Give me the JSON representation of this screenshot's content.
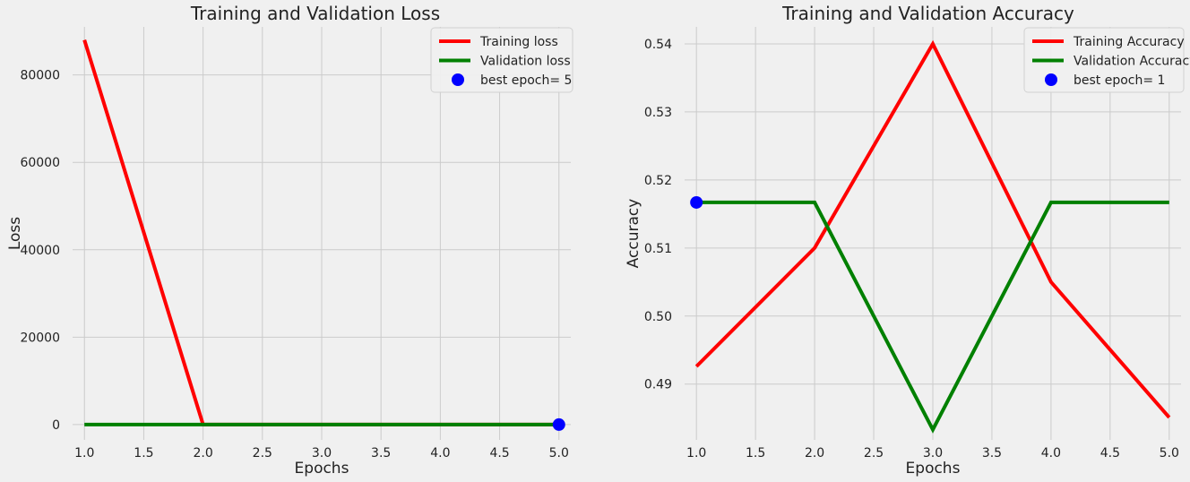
{
  "chart_data": [
    {
      "type": "line",
      "title": "Training and Validation Loss",
      "xlabel": "Epochs",
      "ylabel": "Loss",
      "xlim": [
        0.9,
        5.1
      ],
      "ylim": [
        -3500,
        91000
      ],
      "xticks": [
        "1.0",
        "1.5",
        "2.0",
        "2.5",
        "3.0",
        "3.5",
        "4.0",
        "4.5",
        "5.0"
      ],
      "yticks": [
        "0",
        "20000",
        "40000",
        "60000",
        "80000"
      ],
      "grid": true,
      "legend_position": "top-right",
      "series": [
        {
          "name": "Training loss",
          "color": "#ff0000",
          "x": [
            1,
            2,
            3,
            4,
            5
          ],
          "y": [
            88000,
            0,
            0,
            0,
            0
          ]
        },
        {
          "name": "Validation loss",
          "color": "#008000",
          "x": [
            1,
            2,
            3,
            4,
            5
          ],
          "y": [
            0,
            0,
            0,
            0,
            0
          ]
        }
      ],
      "marker": {
        "name": "best epoch= 5",
        "color": "#0000ff",
        "x": 5,
        "y": 0
      }
    },
    {
      "type": "line",
      "title": "Training and Validation Accuracy",
      "xlabel": "Epochs",
      "ylabel": "Accuracy",
      "xlim": [
        0.9,
        5.1
      ],
      "ylim": [
        0.4818,
        0.5425
      ],
      "xticks": [
        "1.0",
        "1.5",
        "2.0",
        "2.5",
        "3.0",
        "3.5",
        "4.0",
        "4.5",
        "5.0"
      ],
      "yticks": [
        "0.49",
        "0.50",
        "0.51",
        "0.52",
        "0.53",
        "0.54"
      ],
      "grid": true,
      "legend_position": "top-right",
      "series": [
        {
          "name": "Training Accuracy",
          "color": "#ff0000",
          "x": [
            1,
            2,
            3,
            4,
            5
          ],
          "y": [
            0.4926,
            0.51,
            0.54,
            0.505,
            0.4851
          ]
        },
        {
          "name": "Validation Accuracy",
          "color": "#008000",
          "x": [
            1,
            2,
            3,
            4,
            5
          ],
          "y": [
            0.5167,
            0.5167,
            0.4833,
            0.5167,
            0.5167
          ]
        }
      ],
      "marker": {
        "name": "best epoch= 1",
        "color": "#0000ff",
        "x": 1,
        "y": 0.5167
      }
    }
  ]
}
